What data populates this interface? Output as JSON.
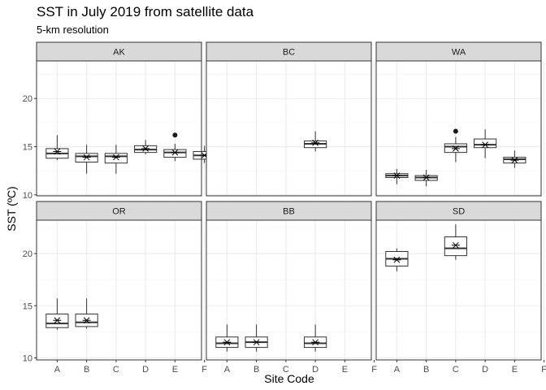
{
  "chart_data": {
    "type": "boxplot",
    "title": "SST in July 2019 from satellite data",
    "subtitle": "5-km resolution",
    "xlabel": "Site Code",
    "ylabel": "SST (ºC)",
    "categories": [
      "A",
      "B",
      "C",
      "D",
      "E",
      "F"
    ],
    "grid": true,
    "facet_rows": [
      {
        "ylim": [
          9.9,
          23.9
        ],
        "yticks": [
          10,
          15,
          20
        ]
      },
      {
        "ylim": [
          9.8,
          23.2
        ],
        "yticks": [
          10,
          15,
          20
        ]
      }
    ],
    "panels": [
      {
        "name": "AK",
        "row": 0,
        "col": 0,
        "boxes": [
          {
            "site": "A",
            "whisker_low": 13.6,
            "q1": 13.8,
            "median": 14.3,
            "q3": 14.8,
            "whisker_high": 16.2,
            "mean": 14.5,
            "outliers": []
          },
          {
            "site": "B",
            "whisker_low": 12.2,
            "q1": 13.4,
            "median": 14.0,
            "q3": 14.3,
            "whisker_high": 15.2,
            "mean": 13.9,
            "outliers": []
          },
          {
            "site": "C",
            "whisker_low": 12.2,
            "q1": 13.3,
            "median": 14.0,
            "q3": 14.3,
            "whisker_high": 15.2,
            "mean": 13.9,
            "outliers": []
          },
          {
            "site": "D",
            "whisker_low": 14.2,
            "q1": 14.4,
            "median": 14.7,
            "q3": 15.1,
            "whisker_high": 15.7,
            "mean": 14.8,
            "outliers": []
          },
          {
            "site": "E",
            "whisker_low": 13.5,
            "q1": 13.9,
            "median": 14.4,
            "q3": 14.7,
            "whisker_high": 15.3,
            "mean": 14.4,
            "outliers": [
              16.2
            ]
          },
          {
            "site": "F",
            "whisker_low": 13.3,
            "q1": 13.7,
            "median": 14.1,
            "q3": 14.5,
            "whisker_high": 15.1,
            "mean": 14.1,
            "outliers": []
          }
        ]
      },
      {
        "name": "BC",
        "row": 0,
        "col": 1,
        "boxes": [
          {
            "site": "D",
            "whisker_low": 14.5,
            "q1": 14.9,
            "median": 15.3,
            "q3": 15.6,
            "whisker_high": 16.6,
            "mean": 15.4,
            "outliers": []
          }
        ]
      },
      {
        "name": "WA",
        "row": 0,
        "col": 2,
        "boxes": [
          {
            "site": "A",
            "whisker_low": 11.1,
            "q1": 11.8,
            "median": 12.0,
            "q3": 12.2,
            "whisker_high": 12.7,
            "mean": 12.0,
            "outliers": []
          },
          {
            "site": "B",
            "whisker_low": 10.9,
            "q1": 11.5,
            "median": 11.8,
            "q3": 12.0,
            "whisker_high": 12.6,
            "mean": 11.8,
            "outliers": []
          },
          {
            "site": "C",
            "whisker_low": 13.4,
            "q1": 14.4,
            "median": 15.0,
            "q3": 15.3,
            "whisker_high": 16.0,
            "mean": 14.8,
            "outliers": [
              16.6
            ]
          },
          {
            "site": "D",
            "whisker_low": 13.8,
            "q1": 14.9,
            "median": 15.2,
            "q3": 15.8,
            "whisker_high": 16.8,
            "mean": 15.2,
            "outliers": []
          },
          {
            "site": "E",
            "whisker_low": 12.8,
            "q1": 13.3,
            "median": 13.7,
            "q3": 13.9,
            "whisker_high": 14.6,
            "mean": 13.6,
            "outliers": []
          }
        ]
      },
      {
        "name": "OR",
        "row": 1,
        "col": 0,
        "boxes": [
          {
            "site": "A",
            "whisker_low": 12.7,
            "q1": 12.9,
            "median": 13.3,
            "q3": 14.2,
            "whisker_high": 15.7,
            "mean": 13.6,
            "outliers": []
          },
          {
            "site": "B",
            "whisker_low": 12.8,
            "q1": 13.0,
            "median": 13.4,
            "q3": 14.2,
            "whisker_high": 15.7,
            "mean": 13.6,
            "outliers": []
          }
        ]
      },
      {
        "name": "BB",
        "row": 1,
        "col": 1,
        "boxes": [
          {
            "site": "A",
            "whisker_low": 10.6,
            "q1": 11.0,
            "median": 11.4,
            "q3": 12.0,
            "whisker_high": 13.2,
            "mean": 11.5,
            "outliers": []
          },
          {
            "site": "B",
            "whisker_low": 10.6,
            "q1": 11.0,
            "median": 11.5,
            "q3": 12.0,
            "whisker_high": 13.2,
            "mean": 11.5,
            "outliers": []
          },
          {
            "site": "D",
            "whisker_low": 10.6,
            "q1": 11.0,
            "median": 11.4,
            "q3": 12.0,
            "whisker_high": 13.2,
            "mean": 11.5,
            "outliers": []
          }
        ]
      },
      {
        "name": "SD",
        "row": 1,
        "col": 2,
        "boxes": [
          {
            "site": "A",
            "whisker_low": 18.3,
            "q1": 18.8,
            "median": 19.5,
            "q3": 20.2,
            "whisker_high": 20.5,
            "mean": 19.4,
            "outliers": []
          },
          {
            "site": "C",
            "whisker_low": 19.4,
            "q1": 19.8,
            "median": 20.5,
            "q3": 21.6,
            "whisker_high": 22.8,
            "mean": 20.8,
            "outliers": []
          }
        ]
      }
    ]
  }
}
